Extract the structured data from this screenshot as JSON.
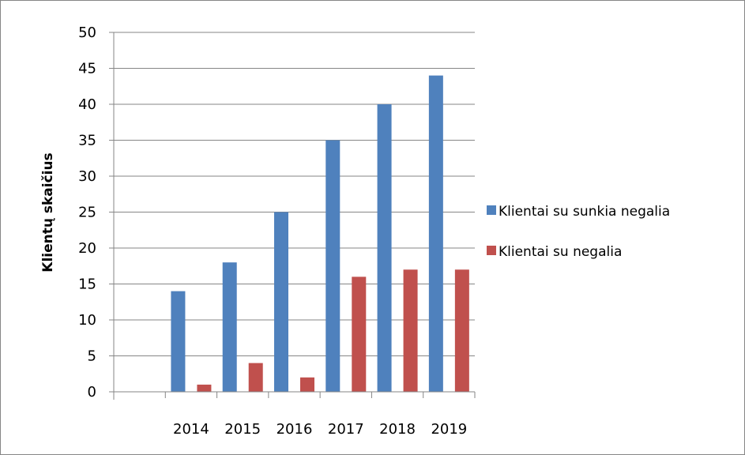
{
  "chart_data": {
    "type": "bar",
    "title": "",
    "xlabel": "",
    "ylabel": "Klientų skaičius",
    "categories": [
      "",
      "2014",
      "2015",
      "2016",
      "2017",
      "2018",
      "2019"
    ],
    "series": [
      {
        "name": "Klientai su sunkia negalia",
        "color": "#4F81BD",
        "values": [
          null,
          14,
          18,
          25,
          35,
          40,
          44
        ]
      },
      {
        "name": "Klientai su negalia",
        "color": "#C0504D",
        "values": [
          null,
          1,
          4,
          2,
          16,
          17,
          17
        ]
      }
    ],
    "ylim": [
      0,
      50
    ],
    "yticks": [
      0,
      5,
      10,
      15,
      20,
      25,
      30,
      35,
      40,
      45,
      50
    ],
    "grid": true,
    "legend_position": "right"
  }
}
